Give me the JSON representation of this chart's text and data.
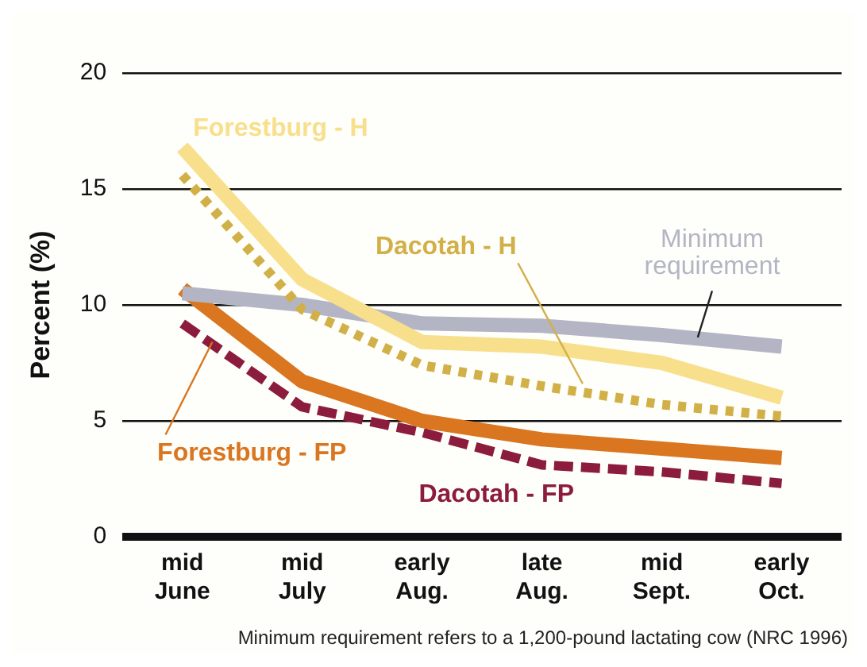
{
  "chart_data": {
    "type": "line",
    "ylabel": "Percent (%)",
    "categories": [
      "mid June",
      "mid July",
      "early Aug.",
      "late Aug.",
      "mid Sept.",
      "early Oct."
    ],
    "ylim": [
      0,
      20
    ],
    "yticks": [
      0,
      5,
      10,
      15,
      20
    ],
    "grid": "y",
    "legend": false,
    "marker": "none",
    "series": [
      {
        "name": "Forestburg - H",
        "color": "#f7df8c",
        "line_style": "solid",
        "values": [
          16.8,
          11.1,
          8.4,
          8.2,
          7.5,
          6.0
        ]
      },
      {
        "name": "Dacotah - H",
        "color": "#d2b048",
        "line_style": "dotted",
        "values": [
          15.6,
          9.8,
          7.4,
          6.5,
          5.7,
          5.2
        ]
      },
      {
        "name": "Minimum requirement",
        "color": "#b3b5c4",
        "line_style": "solid",
        "values": [
          10.5,
          10.0,
          9.2,
          9.1,
          8.7,
          8.2
        ]
      },
      {
        "name": "Forestburg - FP",
        "color": "#d9761f",
        "line_style": "solid",
        "values": [
          10.7,
          6.7,
          5.0,
          4.2,
          3.8,
          3.4
        ]
      },
      {
        "name": "Dacotah - FP",
        "color": "#8c1c3c",
        "line_style": "dashed",
        "values": [
          9.2,
          5.6,
          4.5,
          3.1,
          2.8,
          2.3
        ]
      }
    ],
    "annotations": [
      "Minimum requirement refers to a 1,200-pound lactating cow (NRC 1996)"
    ]
  }
}
